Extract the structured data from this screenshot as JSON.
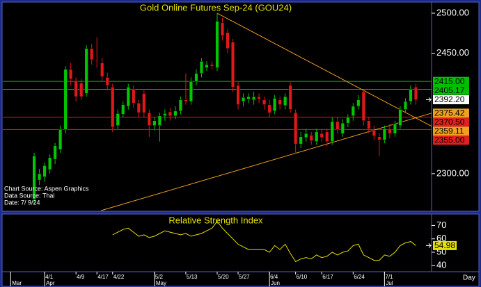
{
  "chart_data": [
    {
      "type": "candlestick",
      "title": "Gold Online Futures Sep-24 (GOU24)",
      "xlim": [
        -6,
        76
      ],
      "ylim": [
        2254,
        2513
      ],
      "yticks": [
        {
          "value": 2300,
          "label": "2300.00"
        },
        {
          "value": 2450,
          "label": "2450.00"
        },
        {
          "value": 2500,
          "label": "2500.00"
        }
      ],
      "open": [
        2268,
        2292,
        2296,
        2305,
        2318,
        2330,
        2355,
        2430,
        2416,
        2413,
        2400,
        2456,
        2442,
        2438,
        2420,
        2408,
        2360,
        2374,
        2384,
        2405,
        2388,
        2400,
        2376,
        2360,
        2360,
        2372,
        2377,
        2372,
        2378,
        2392,
        2390,
        2415,
        2425,
        2432,
        2436,
        2432,
        2488,
        2476,
        2464,
        2410,
        2390,
        2393,
        2392,
        2396,
        2392,
        2386,
        2378,
        2392,
        2385,
        2410,
        2376,
        2337,
        2345,
        2348,
        2340,
        2350,
        2352,
        2340,
        2365,
        2350,
        2363,
        2372,
        2384,
        2402,
        2366,
        2354,
        2346,
        2342,
        2356,
        2350,
        2360,
        2380,
        2390,
        2408
      ],
      "high": [
        2326,
        2306,
        2314,
        2324,
        2338,
        2360,
        2434,
        2438,
        2420,
        2418,
        2460,
        2462,
        2470,
        2444,
        2426,
        2412,
        2380,
        2390,
        2412,
        2410,
        2392,
        2404,
        2380,
        2370,
        2376,
        2380,
        2382,
        2384,
        2396,
        2425,
        2420,
        2430,
        2444,
        2440,
        2440,
        2500,
        2494,
        2480,
        2468,
        2414,
        2400,
        2400,
        2402,
        2400,
        2396,
        2392,
        2398,
        2396,
        2400,
        2414,
        2380,
        2352,
        2356,
        2352,
        2356,
        2356,
        2356,
        2370,
        2370,
        2368,
        2374,
        2388,
        2398,
        2404,
        2370,
        2360,
        2350,
        2360,
        2362,
        2366,
        2384,
        2394,
        2410,
        2412
      ],
      "low": [
        2262,
        2286,
        2290,
        2300,
        2312,
        2326,
        2350,
        2410,
        2390,
        2392,
        2396,
        2436,
        2432,
        2416,
        2404,
        2352,
        2356,
        2370,
        2380,
        2382,
        2370,
        2370,
        2346,
        2354,
        2340,
        2366,
        2366,
        2368,
        2374,
        2386,
        2386,
        2410,
        2420,
        2428,
        2430,
        2428,
        2466,
        2450,
        2402,
        2380,
        2384,
        2388,
        2386,
        2388,
        2380,
        2370,
        2374,
        2380,
        2380,
        2376,
        2325,
        2332,
        2340,
        2336,
        2336,
        2340,
        2334,
        2336,
        2350,
        2346,
        2358,
        2366,
        2380,
        2360,
        2350,
        2342,
        2322,
        2338,
        2344,
        2346,
        2356,
        2376,
        2386,
        2386
      ],
      "close": [
        2322,
        2300,
        2310,
        2320,
        2335,
        2355,
        2430,
        2418,
        2396,
        2396,
        2456,
        2442,
        2441,
        2421,
        2410,
        2358,
        2375,
        2386,
        2408,
        2388,
        2376,
        2376,
        2360,
        2366,
        2372,
        2375,
        2372,
        2378,
        2392,
        2390,
        2415,
        2425,
        2440,
        2436,
        2434,
        2490,
        2472,
        2456,
        2408,
        2386,
        2395,
        2396,
        2396,
        2393,
        2386,
        2376,
        2394,
        2386,
        2396,
        2380,
        2337,
        2346,
        2350,
        2341,
        2352,
        2345,
        2340,
        2365,
        2355,
        2363,
        2370,
        2384,
        2392,
        2366,
        2356,
        2347,
        2342,
        2356,
        2350,
        2362,
        2380,
        2390,
        2405,
        2392
      ],
      "up_color": "#00c800",
      "down_color": "#e01818",
      "levels": [
        {
          "value": 2415,
          "label": "2415.00",
          "color": "#00c000"
        },
        {
          "value": 2405.17,
          "label": "2405.17",
          "color": "#00c000"
        },
        {
          "value": 2370.5,
          "label": "2370.50",
          "color": "#e02020"
        },
        {
          "value": 2355,
          "label": "2355.00",
          "color": "#e02020"
        }
      ],
      "last_price": {
        "value": 2392.2,
        "label": "2392.20",
        "color": "#ffffff"
      },
      "trendlines": [
        {
          "x": [
            35,
            76
          ],
          "y": [
            2500,
            2359.11
          ],
          "label": "2359.11",
          "color": "#f0a020"
        },
        {
          "x": [
            12.8,
            76
          ],
          "y": [
            2254,
            2375.42
          ],
          "label": "2375.42",
          "color": "#f0a020"
        }
      ],
      "annotations": [
        "Chart Source: Aspen Graphics",
        "Data Source: Thai",
        "Date: 7/ 9/24"
      ]
    },
    {
      "type": "line",
      "title": "Relative Strength Index",
      "xlim": [
        -6,
        76
      ],
      "ylim": [
        36,
        78
      ],
      "yticks": [
        40,
        50,
        60,
        70
      ],
      "color": "#e8e000",
      "values": [
        null,
        null,
        null,
        null,
        null,
        null,
        null,
        null,
        null,
        null,
        null,
        null,
        null,
        null,
        null,
        63,
        65,
        67,
        68,
        65,
        62,
        63,
        61,
        62,
        64,
        66,
        65,
        64,
        63,
        64,
        62,
        63,
        64,
        66,
        68,
        73,
        68,
        64,
        60,
        56,
        54,
        52,
        52,
        52,
        52,
        50,
        55,
        52,
        56,
        49,
        43,
        45,
        46,
        45,
        48,
        46,
        47,
        50,
        48,
        50,
        51,
        55,
        56,
        48,
        46,
        44,
        44,
        48,
        47,
        50,
        55,
        57,
        58,
        54.98
      ],
      "last_value": {
        "value": 54.98,
        "label": "54.98"
      },
      "xticks": [
        {
          "value": 2,
          "label": "4/1"
        },
        {
          "value": 8,
          "label": "4/9"
        },
        {
          "value": 12,
          "label": "4/17"
        },
        {
          "value": 15,
          "label": "4/22"
        },
        {
          "value": 23,
          "label": "5/2"
        },
        {
          "value": 29,
          "label": "5/13"
        },
        {
          "value": 35,
          "label": "5/20"
        },
        {
          "value": 39,
          "label": "5/27"
        },
        {
          "value": 45,
          "label": "6/4"
        },
        {
          "value": 50,
          "label": "6/10"
        },
        {
          "value": 55,
          "label": "6/17"
        },
        {
          "value": 61,
          "label": "6/24"
        },
        {
          "value": 67,
          "label": "7/1"
        }
      ],
      "xticks_major": [
        {
          "value": -4.5,
          "label": "Mar"
        },
        {
          "value": 2,
          "label": "Apr"
        },
        {
          "value": 23,
          "label": "May"
        },
        {
          "value": 45,
          "label": "Jun"
        },
        {
          "value": 67,
          "label": "Jul"
        }
      ],
      "x_label": "Day"
    }
  ]
}
